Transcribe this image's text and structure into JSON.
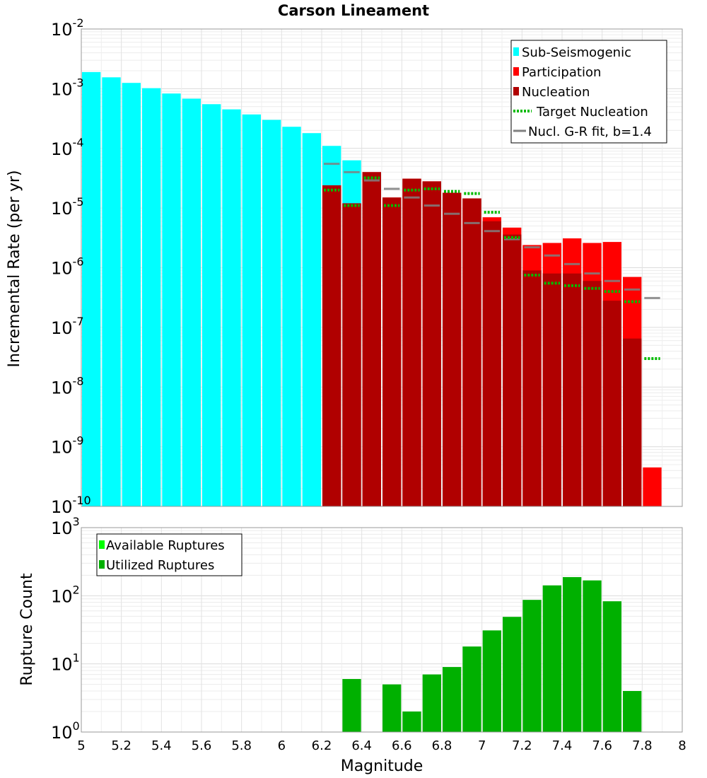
{
  "chart_data": [
    {
      "type": "bar",
      "title": "Carson Lineament",
      "xlabel": "",
      "ylabel": "Incremental Rate (per yr)",
      "xlim": [
        5,
        8
      ],
      "ylim_exp": [
        -10,
        -2
      ],
      "y_tick_exponents": [
        "-10",
        "-9",
        "-8",
        "-7",
        "-6",
        "-5",
        "-4",
        "-3",
        "-2"
      ],
      "bin_width": 0.1,
      "series": [
        {
          "name": "Sub-Seismogenic",
          "color": "#00ffff",
          "x": [
            5.05,
            5.15,
            5.25,
            5.35,
            5.45,
            5.55,
            5.65,
            5.75,
            5.85,
            5.95,
            6.05,
            6.15,
            6.25,
            6.35
          ],
          "values": [
            0.0019,
            0.00155,
            0.00125,
            0.00102,
            0.00083,
            0.00068,
            0.00055,
            0.00045,
            0.00037,
            0.0003,
            0.00023,
            0.00018,
            0.00011,
            6.3e-05
          ]
        },
        {
          "name": "Participation",
          "color": "#ff0000",
          "x": [
            6.25,
            6.35,
            6.45,
            6.55,
            6.65,
            6.75,
            6.85,
            6.95,
            7.05,
            7.15,
            7.25,
            7.35,
            7.45,
            7.55,
            7.65,
            7.75,
            7.85
          ],
          "values": [
            2.4e-05,
            1.2e-05,
            4e-05,
            1.5e-05,
            3.1e-05,
            2.8e-05,
            1.8e-05,
            1.45e-05,
            7e-06,
            4.7e-06,
            2.4e-06,
            2.6e-06,
            3.1e-06,
            2.6e-06,
            2.7e-06,
            7e-07,
            4.5e-10
          ]
        },
        {
          "name": "Nucleation",
          "color": "#b00000",
          "x": [
            6.25,
            6.35,
            6.45,
            6.55,
            6.65,
            6.75,
            6.85,
            6.95,
            7.05,
            7.15,
            7.25,
            7.35,
            7.45,
            7.55,
            7.65,
            7.75
          ],
          "values": [
            2.4e-05,
            1.2e-05,
            4e-05,
            1.5e-05,
            3.1e-05,
            2.8e-05,
            1.8e-05,
            1.45e-05,
            6e-06,
            3.6e-06,
            9e-07,
            8e-07,
            8e-07,
            6e-07,
            2.8e-07,
            6.5e-08
          ]
        },
        {
          "name": "Target Nucleation",
          "color": "#00bb00",
          "style": "dotted",
          "x": [
            6.25,
            6.35,
            6.45,
            6.55,
            6.65,
            6.75,
            6.85,
            6.95,
            7.05,
            7.15,
            7.25,
            7.35,
            7.45,
            7.55,
            7.65,
            7.75,
            7.85
          ],
          "values": [
            2e-05,
            1.1e-05,
            3.2e-05,
            1.1e-05,
            2e-05,
            2.1e-05,
            1.9e-05,
            1.75e-05,
            8.5e-06,
            3.2e-06,
            7.5e-07,
            5.5e-07,
            5e-07,
            4.5e-07,
            4e-07,
            2.7e-07,
            3e-08
          ]
        },
        {
          "name": "Nucl. G-R fit, b=1.4",
          "color": "#808080",
          "style": "solid",
          "x": [
            6.25,
            6.35,
            6.45,
            6.55,
            6.65,
            6.75,
            6.85,
            6.95,
            7.05,
            7.15,
            7.25,
            7.35,
            7.45,
            7.55,
            7.65,
            7.75,
            7.85
          ],
          "values": [
            5.5e-05,
            4e-05,
            2.9e-05,
            2.1e-05,
            1.5e-05,
            1.1e-05,
            8e-06,
            5.6e-06,
            4.1e-06,
            3e-06,
            2.2e-06,
            1.6e-06,
            1.15e-06,
            8e-07,
            6e-07,
            4.3e-07,
            3.1e-07
          ]
        }
      ],
      "legend": {
        "position": "top-right",
        "items": [
          "Sub-Seismogenic",
          "Participation",
          "Nucleation",
          "Target Nucleation",
          "Nucl. G-R fit, b=1.4"
        ]
      }
    },
    {
      "type": "bar",
      "title": "",
      "xlabel": "Magnitude",
      "ylabel": "Rupture Count",
      "xlim": [
        5,
        8
      ],
      "ylim_exp": [
        0,
        3
      ],
      "y_tick_exponents": [
        "0",
        "1",
        "2",
        "3"
      ],
      "x_tick_labels": [
        "5",
        "5.2",
        "5.4",
        "5.6",
        "5.8",
        "6",
        "6.2",
        "6.4",
        "6.6",
        "6.8",
        "7",
        "7.2",
        "7.4",
        "7.6",
        "7.8",
        "8"
      ],
      "bin_width": 0.1,
      "series": [
        {
          "name": "Available Ruptures",
          "color": "#00ff00",
          "x": [],
          "values": []
        },
        {
          "name": "Utilized Ruptures",
          "color": "#00b000",
          "x": [
            6.35,
            6.55,
            6.65,
            6.75,
            6.85,
            6.95,
            7.05,
            7.15,
            7.25,
            7.35,
            7.45,
            7.55,
            7.65,
            7.75
          ],
          "values": [
            6,
            5,
            2,
            7,
            9,
            18,
            31,
            49,
            87,
            142,
            188,
            168,
            83,
            4
          ]
        }
      ],
      "legend": {
        "position": "top-left",
        "items": [
          "Available Ruptures",
          "Utilized Ruptures"
        ]
      }
    }
  ]
}
